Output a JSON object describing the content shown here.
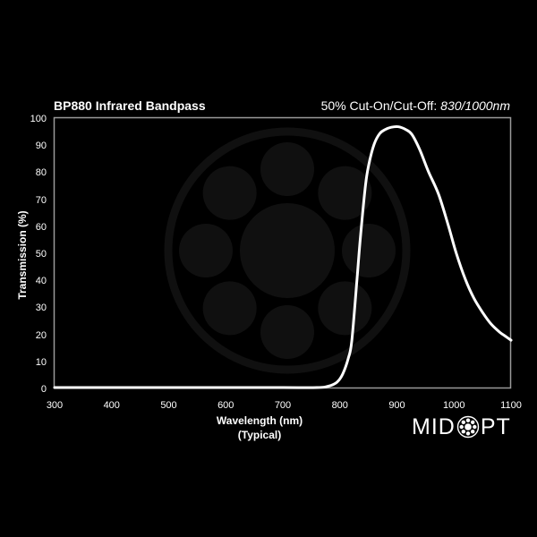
{
  "header": {
    "title": "BP880 Infrared Bandpass",
    "subtitle_label": "50% Cut-On/Cut-Off: ",
    "subtitle_value": "830/1000nm"
  },
  "axes": {
    "ylabel": "Transmission (%)",
    "xlabel": "Wavelength (nm)",
    "xlabel_note": "(Typical)",
    "yticks": [
      "100",
      "90",
      "80",
      "70",
      "60",
      "50",
      "40",
      "30",
      "20",
      "10",
      "0"
    ],
    "xticks": [
      "300",
      "400",
      "500",
      "600",
      "700",
      "800",
      "900",
      "1000",
      "1100"
    ]
  },
  "brand": {
    "logo_left": "MID",
    "logo_right": "PT"
  },
  "colors": {
    "background": "#000000",
    "curve": "#ffffff",
    "frame": "#9a9a9a",
    "watermark": "#101010"
  },
  "chart_data": {
    "type": "line",
    "title": "BP880 Infrared Bandpass",
    "subtitle": "50% Cut-On/Cut-Off: 830/1000nm",
    "xlabel": "Wavelength (nm) (Typical)",
    "ylabel": "Transmission (%)",
    "xlim": [
      300,
      1100
    ],
    "ylim": [
      0,
      100
    ],
    "grid": false,
    "legend": null,
    "series": [
      {
        "name": "BP880",
        "x": [
          300,
          400,
          500,
          600,
          700,
          760,
          780,
          795,
          805,
          815,
          821,
          830,
          836,
          845,
          851,
          860,
          870,
          880,
          890,
          902,
          915,
          926,
          940,
          955,
          973,
          990,
          1004,
          1020,
          1035,
          1051,
          1065,
          1080,
          1090,
          1100
        ],
        "y": [
          0,
          0,
          0,
          0,
          0,
          0,
          0.5,
          2,
          5,
          11,
          17.5,
          40,
          55.6,
          75,
          82.8,
          90,
          94,
          95.5,
          96.3,
          96.5,
          95.5,
          93.7,
          88,
          80,
          71.5,
          60,
          49.7,
          40,
          33,
          27.5,
          23.5,
          20.5,
          19,
          17.5
        ]
      }
    ]
  }
}
